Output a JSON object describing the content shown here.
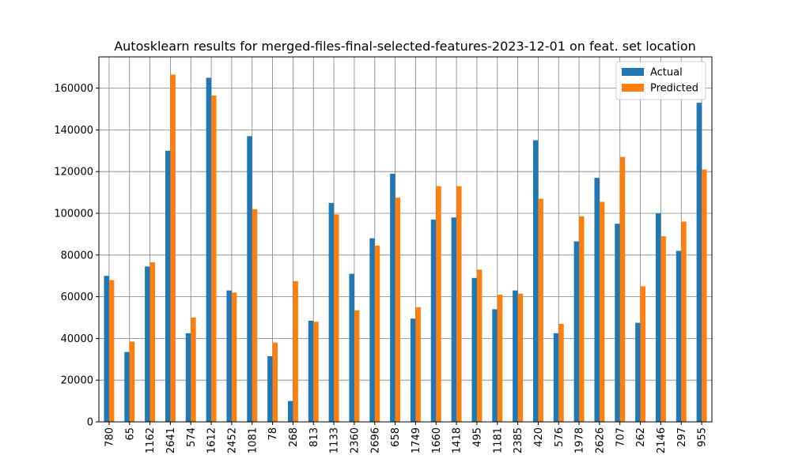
{
  "chart_data": {
    "type": "bar",
    "title": "Autosklearn results for merged-files-final-selected-features-2023-12-01 on feat. set location",
    "xlabel": "",
    "ylabel": "",
    "categories": [
      "780",
      "65",
      "1162",
      "2641",
      "574",
      "1612",
      "2452",
      "1081",
      "78",
      "268",
      "813",
      "1133",
      "2360",
      "2696",
      "658",
      "1749",
      "1660",
      "1418",
      "495",
      "1181",
      "2385",
      "420",
      "576",
      "1978",
      "2626",
      "707",
      "262",
      "2146",
      "297",
      "955"
    ],
    "series": [
      {
        "name": "Actual",
        "color": "#1f77b4",
        "values": [
          70000,
          33500,
          74500,
          130000,
          42500,
          165000,
          63000,
          137000,
          31500,
          10000,
          48500,
          105000,
          71000,
          88000,
          119000,
          49500,
          97000,
          98000,
          69000,
          54000,
          63000,
          135000,
          42500,
          86500,
          117000,
          95000,
          47500,
          100000,
          82000,
          153000
        ]
      },
      {
        "name": "Predicted",
        "color": "#ff7f0e",
        "values": [
          68000,
          38500,
          76500,
          166500,
          50000,
          156500,
          62000,
          102000,
          38000,
          67500,
          48000,
          99500,
          53500,
          84500,
          107500,
          55000,
          113000,
          113000,
          73000,
          61000,
          61500,
          107000,
          47000,
          98500,
          105500,
          127000,
          65000,
          89000,
          96000,
          121000
        ]
      }
    ],
    "ylim": [
      0,
      175000
    ],
    "yticks": [
      0,
      20000,
      40000,
      60000,
      80000,
      100000,
      120000,
      140000,
      160000
    ],
    "ytick_labels": [
      "0",
      "20000",
      "40000",
      "60000",
      "80000",
      "100000",
      "120000",
      "140000",
      "160000"
    ],
    "grid": true,
    "grid_color": "#808080",
    "legend_position": "top-right"
  }
}
